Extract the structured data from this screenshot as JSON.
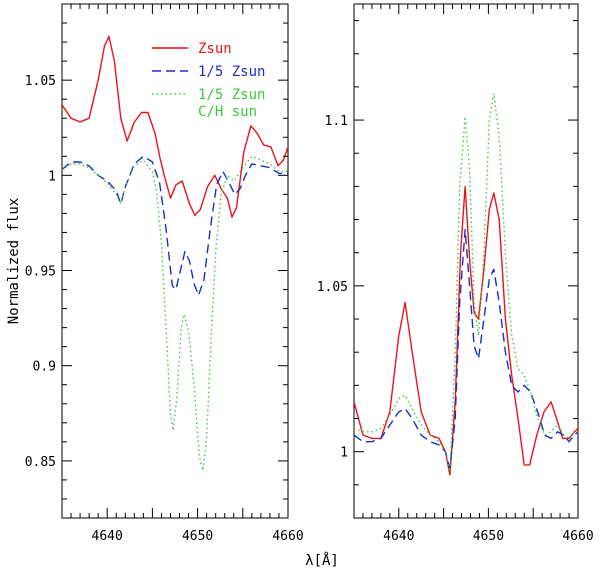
{
  "chart_data": {
    "shared_xlabel": "λ[Å]",
    "panels": [
      {
        "type": "line",
        "name": "left",
        "ylabel": "Normalized flux",
        "xlim": [
          4635,
          4660
        ],
        "ylim": [
          0.82,
          1.09
        ],
        "xticks": [
          4640,
          4650,
          4660
        ],
        "yticks": [
          0.85,
          0.9,
          0.95,
          1,
          1.05
        ],
        "ytick_labels": [
          "0.85",
          "0.9",
          "0.95",
          "1",
          "1.05"
        ],
        "legend_position": "top-right",
        "series": [
          {
            "name": "Zsun",
            "legend": [
              "Zsun"
            ],
            "color": "#e8141c",
            "dash": "solid",
            "points": [
              [
                4635,
                1.037
              ],
              [
                4636,
                1.03
              ],
              [
                4637,
                1.028
              ],
              [
                4638,
                1.03
              ],
              [
                4639,
                1.05
              ],
              [
                4639.7,
                1.068
              ],
              [
                4640.2,
                1.073
              ],
              [
                4640.8,
                1.06
              ],
              [
                4641.5,
                1.03
              ],
              [
                4642.2,
                1.018
              ],
              [
                4643,
                1.028
              ],
              [
                4643.8,
                1.033
              ],
              [
                4644.5,
                1.033
              ],
              [
                4645.3,
                1.022
              ],
              [
                4645.8,
                1.01
              ],
              [
                4646.3,
                1.0
              ],
              [
                4647,
                0.988
              ],
              [
                4647.6,
                0.995
              ],
              [
                4648.3,
                0.997
              ],
              [
                4649.1,
                0.985
              ],
              [
                4649.7,
                0.979
              ],
              [
                4650.3,
                0.982
              ],
              [
                4651.1,
                0.994
              ],
              [
                4651.9,
                1.0
              ],
              [
                4652.6,
                0.993
              ],
              [
                4653.3,
                0.988
              ],
              [
                4653.8,
                0.978
              ],
              [
                4654.3,
                0.983
              ],
              [
                4655.1,
                1.012
              ],
              [
                4655.9,
                1.026
              ],
              [
                4656.6,
                1.022
              ],
              [
                4657.3,
                1.016
              ],
              [
                4658.1,
                1.015
              ],
              [
                4658.9,
                1.005
              ],
              [
                4659.5,
                1.008
              ],
              [
                4660,
                1.015
              ]
            ]
          },
          {
            "name": "1/5 Zsun",
            "legend": [
              "1/5 Zsun"
            ],
            "color": "#1b2fc8",
            "dash": "9,5",
            "points": [
              [
                4635,
                1.003
              ],
              [
                4636,
                1.007
              ],
              [
                4637,
                1.007
              ],
              [
                4638,
                1.005
              ],
              [
                4639,
                1.0
              ],
              [
                4640,
                0.997
              ],
              [
                4641,
                0.992
              ],
              [
                4641.5,
                0.985
              ],
              [
                4642,
                0.994
              ],
              [
                4643,
                1.006
              ],
              [
                4644,
                1.01
              ],
              [
                4645,
                1.007
              ],
              [
                4645.8,
                0.996
              ],
              [
                4646.5,
                0.972
              ],
              [
                4647.2,
                0.942
              ],
              [
                4647.6,
                0.94
              ],
              [
                4648.1,
                0.95
              ],
              [
                4648.6,
                0.96
              ],
              [
                4649.1,
                0.955
              ],
              [
                4649.6,
                0.943
              ],
              [
                4650.1,
                0.937
              ],
              [
                4650.7,
                0.945
              ],
              [
                4651.4,
                0.972
              ],
              [
                4652.1,
                0.995
              ],
              [
                4652.8,
                1.002
              ],
              [
                4653.5,
                0.996
              ],
              [
                4654.1,
                0.99
              ],
              [
                4654.7,
                0.993
              ],
              [
                4655.3,
                1.0
              ],
              [
                4656,
                1.006
              ],
              [
                4657,
                1.005
              ],
              [
                4658,
                1.004
              ],
              [
                4659,
                1.001
              ],
              [
                4660,
                1.001
              ]
            ]
          },
          {
            "name": "1/5 Zsun C/H sun",
            "legend": [
              "1/5 Zsun",
              "C/H sun"
            ],
            "color": "#3ec63e",
            "dash": "1.5,3",
            "points": [
              [
                4635,
                1.003
              ],
              [
                4636,
                1.006
              ],
              [
                4637,
                1.006
              ],
              [
                4638,
                1.004
              ],
              [
                4639,
                1.0
              ],
              [
                4640,
                0.996
              ],
              [
                4641,
                0.99
              ],
              [
                4641.5,
                0.985
              ],
              [
                4642,
                0.994
              ],
              [
                4643,
                1.005
              ],
              [
                4644,
                1.008
              ],
              [
                4645,
                1.002
              ],
              [
                4645.5,
                0.99
              ],
              [
                4646,
                0.965
              ],
              [
                4646.5,
                0.92
              ],
              [
                4647,
                0.875
              ],
              [
                4647.3,
                0.866
              ],
              [
                4647.7,
                0.883
              ],
              [
                4648.2,
                0.92
              ],
              [
                4648.5,
                0.927
              ],
              [
                4649,
                0.918
              ],
              [
                4649.6,
                0.89
              ],
              [
                4650.2,
                0.852
              ],
              [
                4650.6,
                0.845
              ],
              [
                4651,
                0.862
              ],
              [
                4651.5,
                0.915
              ],
              [
                4652,
                0.96
              ],
              [
                4652.6,
                0.99
              ],
              [
                4653.3,
                1.0
              ],
              [
                4654,
                0.997
              ],
              [
                4655,
                1.004
              ],
              [
                4656,
                1.01
              ],
              [
                4657,
                1.008
              ],
              [
                4658,
                1.006
              ],
              [
                4659,
                1.002
              ],
              [
                4660,
                1.002
              ]
            ]
          }
        ]
      },
      {
        "type": "line",
        "name": "right",
        "ylabel": "",
        "xlim": [
          4635,
          4660
        ],
        "ylim": [
          0.98,
          1.135
        ],
        "xticks": [
          4640,
          4650,
          4660
        ],
        "yticks": [
          1,
          1.05,
          1.1
        ],
        "ytick_labels": [
          "1",
          "1.05",
          "1.1"
        ],
        "series": [
          {
            "name": "Zsun",
            "color": "#e8141c",
            "dash": "solid",
            "points": [
              [
                4635,
                1.015
              ],
              [
                4636,
                1.005
              ],
              [
                4637,
                1.004
              ],
              [
                4638,
                1.004
              ],
              [
                4639,
                1.012
              ],
              [
                4640,
                1.035
              ],
              [
                4640.7,
                1.045
              ],
              [
                4641.5,
                1.03
              ],
              [
                4642.5,
                1.012
              ],
              [
                4643.5,
                1.005
              ],
              [
                4644.5,
                1.004
              ],
              [
                4645.2,
                1.0
              ],
              [
                4645.7,
                0.993
              ],
              [
                4646.3,
                1.015
              ],
              [
                4646.9,
                1.06
              ],
              [
                4647.4,
                1.08
              ],
              [
                4647.9,
                1.058
              ],
              [
                4648.4,
                1.042
              ],
              [
                4648.9,
                1.04
              ],
              [
                4649.5,
                1.055
              ],
              [
                4650.1,
                1.073
              ],
              [
                4650.6,
                1.078
              ],
              [
                4651.2,
                1.07
              ],
              [
                4651.9,
                1.04
              ],
              [
                4652.6,
                1.023
              ],
              [
                4653.3,
                1.01
              ],
              [
                4654,
                0.996
              ],
              [
                4654.6,
                0.996
              ],
              [
                4655.4,
                1.005
              ],
              [
                4656.2,
                1.012
              ],
              [
                4657,
                1.015
              ],
              [
                4657.6,
                1.01
              ],
              [
                4658.3,
                1.004
              ],
              [
                4659,
                1.004
              ],
              [
                4659.6,
                1.006
              ],
              [
                4660,
                1.007
              ]
            ]
          },
          {
            "name": "1/5 Zsun",
            "color": "#1b2fc8",
            "dash": "9,5",
            "points": [
              [
                4635,
                1.005
              ],
              [
                4636,
                1.003
              ],
              [
                4637,
                1.003
              ],
              [
                4638,
                1.004
              ],
              [
                4639,
                1.008
              ],
              [
                4640,
                1.012
              ],
              [
                4640.7,
                1.013
              ],
              [
                4641.5,
                1.01
              ],
              [
                4642.5,
                1.005
              ],
              [
                4643.5,
                1.003
              ],
              [
                4644.5,
                1.002
              ],
              [
                4645.2,
                1.0
              ],
              [
                4645.7,
                0.995
              ],
              [
                4646.3,
                1.01
              ],
              [
                4646.8,
                1.045
              ],
              [
                4647.4,
                1.067
              ],
              [
                4647.9,
                1.05
              ],
              [
                4648.4,
                1.032
              ],
              [
                4648.9,
                1.028
              ],
              [
                4649.5,
                1.04
              ],
              [
                4650.1,
                1.052
              ],
              [
                4650.6,
                1.055
              ],
              [
                4651.2,
                1.045
              ],
              [
                4651.9,
                1.03
              ],
              [
                4652.6,
                1.02
              ],
              [
                4653.3,
                1.018
              ],
              [
                4654,
                1.02
              ],
              [
                4654.7,
                1.018
              ],
              [
                4655.5,
                1.012
              ],
              [
                4656.3,
                1.005
              ],
              [
                4657,
                1.004
              ],
              [
                4657.7,
                1.006
              ],
              [
                4658.4,
                1.005
              ],
              [
                4659,
                1.003
              ],
              [
                4659.6,
                1.005
              ],
              [
                4660,
                1.006
              ]
            ]
          },
          {
            "name": "1/5 Zsun C/H sun",
            "color": "#3ec63e",
            "dash": "1.5,3",
            "points": [
              [
                4635,
                1.007
              ],
              [
                4636,
                1.006
              ],
              [
                4637,
                1.006
              ],
              [
                4638,
                1.007
              ],
              [
                4639,
                1.011
              ],
              [
                4640,
                1.016
              ],
              [
                4640.7,
                1.017
              ],
              [
                4641.5,
                1.013
              ],
              [
                4642.5,
                1.008
              ],
              [
                4643.5,
                1.005
              ],
              [
                4644.5,
                1.003
              ],
              [
                4645.2,
                1.0
              ],
              [
                4645.7,
                0.994
              ],
              [
                4646.3,
                1.03
              ],
              [
                4646.8,
                1.08
              ],
              [
                4647.4,
                1.101
              ],
              [
                4647.9,
                1.085
              ],
              [
                4648.4,
                1.045
              ],
              [
                4648.9,
                1.035
              ],
              [
                4649.5,
                1.06
              ],
              [
                4650.1,
                1.1
              ],
              [
                4650.6,
                1.108
              ],
              [
                4651.2,
                1.095
              ],
              [
                4651.9,
                1.06
              ],
              [
                4652.6,
                1.035
              ],
              [
                4653.3,
                1.025
              ],
              [
                4654,
                1.023
              ],
              [
                4654.7,
                1.018
              ],
              [
                4655.5,
                1.01
              ],
              [
                4656.3,
                1.005
              ],
              [
                4657,
                1.006
              ],
              [
                4657.7,
                1.008
              ],
              [
                4658.4,
                1.005
              ],
              [
                4659,
                1.004
              ],
              [
                4659.6,
                1.006
              ],
              [
                4660,
                1.006
              ]
            ]
          }
        ]
      }
    ]
  }
}
